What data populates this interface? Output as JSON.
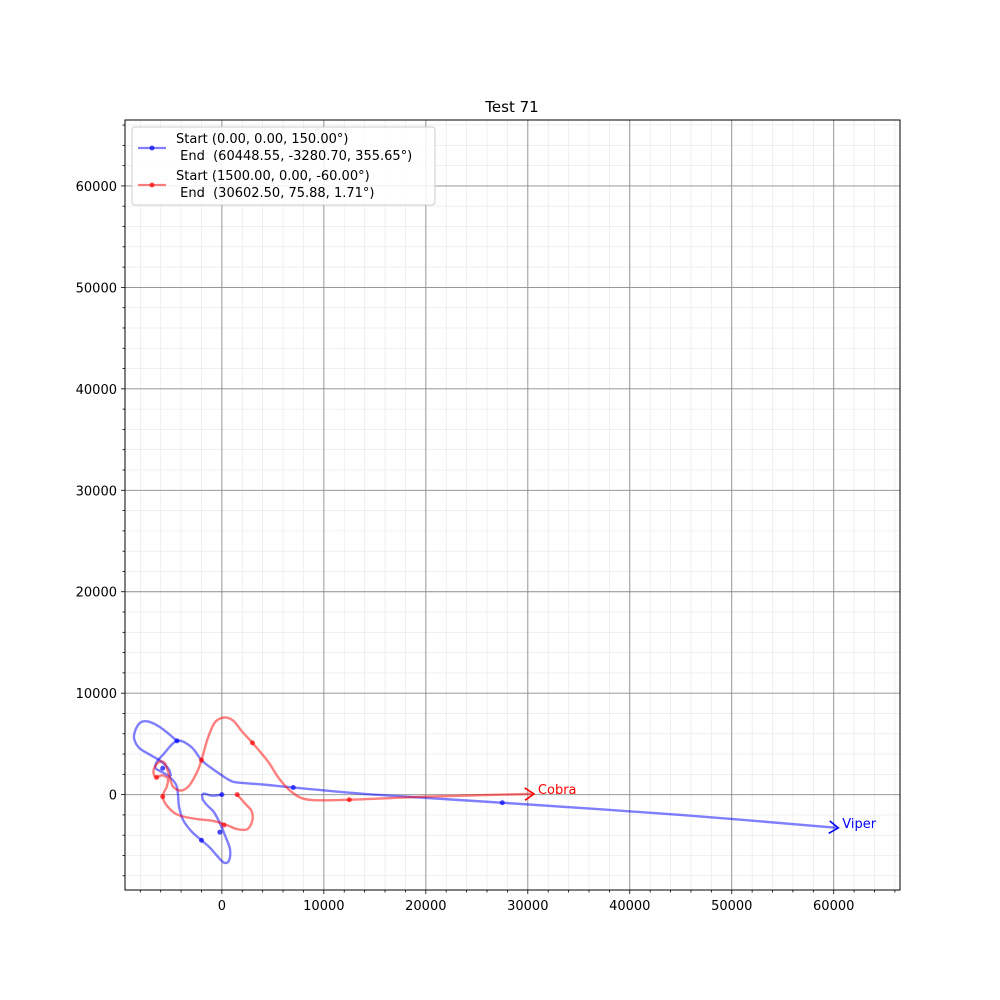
{
  "chart_data": {
    "type": "line",
    "title": "Test 71",
    "xlabel": "",
    "ylabel": "",
    "xlim": [
      -9500,
      66500
    ],
    "ylim": [
      -9400,
      66500
    ],
    "x_ticks": [
      0,
      10000,
      20000,
      30000,
      40000,
      50000,
      60000
    ],
    "y_ticks": [
      0,
      10000,
      20000,
      30000,
      40000,
      50000,
      60000
    ],
    "grid": true,
    "minor_grid": true,
    "legend_position": "top-left",
    "series": [
      {
        "name": "Start (0.00, 0.00, 150.00°)\n End  (60448.55, -3280.70, 355.65°)",
        "legend_line1": "Start (0.00, 0.00, 150.00°)",
        "legend_line2": " End  (60448.55, -3280.70, 355.65°)",
        "end_label": "Viper",
        "color": "#0000ff",
        "path": [
          [
            0,
            0
          ],
          [
            -1000,
            -100
          ],
          [
            -1800,
            100
          ],
          [
            -1900,
            -400
          ],
          [
            -1500,
            -1000
          ],
          [
            -800,
            -1700
          ],
          [
            -200,
            -2800
          ],
          [
            300,
            -4000
          ],
          [
            800,
            -5400
          ],
          [
            700,
            -6500
          ],
          [
            200,
            -6700
          ],
          [
            -500,
            -6000
          ],
          [
            -1200,
            -5200
          ],
          [
            -2000,
            -4500
          ],
          [
            -3000,
            -3600
          ],
          [
            -3800,
            -2500
          ],
          [
            -4200,
            -1200
          ],
          [
            -4300,
            0
          ],
          [
            -4500,
            1000
          ],
          [
            -5200,
            1800
          ],
          [
            -6000,
            2300
          ],
          [
            -6500,
            2600
          ],
          [
            -6400,
            3200
          ],
          [
            -5800,
            3900
          ],
          [
            -4400,
            5300
          ],
          [
            -3000,
            4700
          ],
          [
            -2000,
            3400
          ],
          [
            -1000,
            2600
          ],
          [
            0,
            1900
          ],
          [
            800,
            1400
          ],
          [
            1500,
            1200
          ],
          [
            4000,
            1000
          ],
          [
            7000,
            700
          ],
          [
            15000,
            0
          ],
          [
            27500,
            -800
          ],
          [
            45000,
            -2000
          ],
          [
            60448,
            -3280
          ]
        ],
        "markers": [
          [
            0,
            0
          ],
          [
            -200,
            -3700
          ],
          [
            -2000,
            -4500
          ],
          [
            -5800,
            2600
          ],
          [
            -4400,
            5300
          ],
          [
            7000,
            700
          ],
          [
            27500,
            -800
          ]
        ],
        "loop": [
          [
            -4400,
            5300
          ],
          [
            -6000,
            6600
          ],
          [
            -7200,
            7200
          ],
          [
            -8000,
            7100
          ],
          [
            -8500,
            6300
          ],
          [
            -8600,
            5500
          ],
          [
            -8100,
            4600
          ],
          [
            -7000,
            3900
          ],
          [
            -6000,
            3300
          ],
          [
            -5200,
            2500
          ],
          [
            -5000,
            1800
          ]
        ]
      },
      {
        "name": "Start (1500.00, 0.00, -60.00°)\n End  (30602.50, 75.88, 1.71°)",
        "legend_line1": "Start (1500.00, 0.00, -60.00°)",
        "legend_line2": " End  (30602.50, 75.88, 1.71°)",
        "end_label": "Cobra",
        "color": "#ff0000",
        "path": [
          [
            1500,
            0
          ],
          [
            2300,
            -900
          ],
          [
            2900,
            -1600
          ],
          [
            3000,
            -2500
          ],
          [
            2500,
            -3400
          ],
          [
            1500,
            -3400
          ],
          [
            500,
            -3000
          ],
          [
            -800,
            -2600
          ],
          [
            -2500,
            -2400
          ],
          [
            -4300,
            -2000
          ],
          [
            -5300,
            -1200
          ],
          [
            -5800,
            -200
          ],
          [
            -5400,
            800
          ],
          [
            -5300,
            1600
          ],
          [
            -5900,
            1900
          ],
          [
            -6500,
            1700
          ],
          [
            -6700,
            2400
          ],
          [
            -6200,
            3200
          ],
          [
            -5600,
            3100
          ],
          [
            -5200,
            2000
          ],
          [
            -4800,
            800
          ],
          [
            -4000,
            400
          ],
          [
            -3200,
            900
          ],
          [
            -2400,
            2300
          ],
          [
            -2000,
            3400
          ],
          [
            -1400,
            5500
          ],
          [
            -700,
            7100
          ],
          [
            200,
            7600
          ],
          [
            1100,
            7300
          ],
          [
            2000,
            6200
          ],
          [
            3000,
            5100
          ],
          [
            4500,
            3300
          ],
          [
            5600,
            1600
          ],
          [
            6800,
            300
          ],
          [
            8500,
            -500
          ],
          [
            12500,
            -500
          ],
          [
            20000,
            -200
          ],
          [
            30602,
            76
          ]
        ],
        "markers": [
          [
            1500,
            0
          ],
          [
            200,
            -3000
          ],
          [
            -5800,
            -200
          ],
          [
            -6400,
            1700
          ],
          [
            -2000,
            3400
          ],
          [
            3000,
            5100
          ],
          [
            12500,
            -500
          ]
        ]
      }
    ]
  }
}
